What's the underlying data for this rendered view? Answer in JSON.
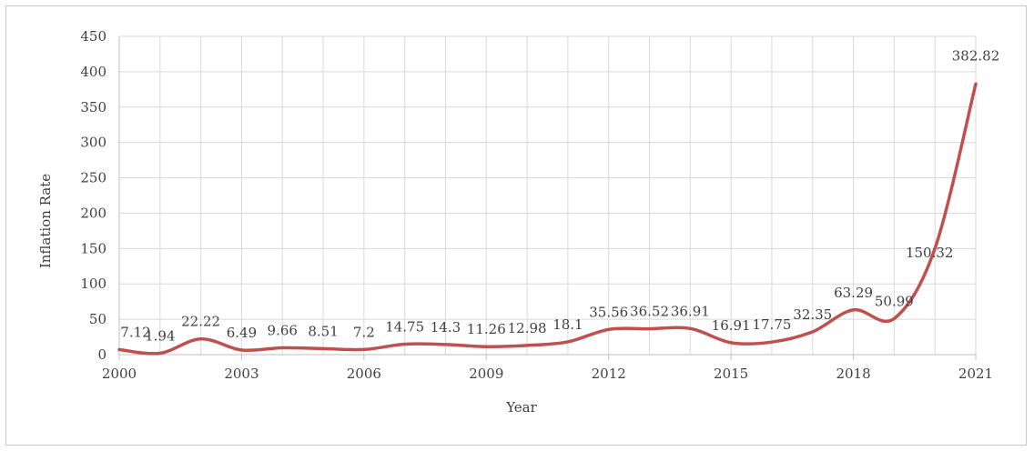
{
  "chart_data": {
    "type": "line",
    "xlabel": "Year",
    "ylabel": "Inflation Rate",
    "ylim": [
      0,
      450
    ],
    "yticks": [
      0,
      50,
      100,
      150,
      200,
      250,
      300,
      350,
      400,
      450
    ],
    "xticks": [
      2000,
      2003,
      2006,
      2009,
      2012,
      2015,
      2018,
      2021
    ],
    "grid": true,
    "line_color": "#c0504d",
    "x": [
      2000,
      2001,
      2002,
      2003,
      2004,
      2005,
      2006,
      2007,
      2008,
      2009,
      2010,
      2011,
      2012,
      2013,
      2014,
      2015,
      2016,
      2017,
      2018,
      2019,
      2020,
      2021
    ],
    "values": [
      7.12,
      1.94,
      22.22,
      6.49,
      9.66,
      8.51,
      7.2,
      14.75,
      14.3,
      11.26,
      12.98,
      18.1,
      35.56,
      36.52,
      36.91,
      16.91,
      17.75,
      32.35,
      63.29,
      50.99,
      150.32,
      382.82
    ],
    "data_labels": [
      "7.12",
      "1.94",
      "22.22",
      "6.49",
      "9.66",
      "8.51",
      "7.2",
      "14.75",
      "14.3",
      "11.26",
      "12.98",
      "18.1",
      "35.56",
      "36.52",
      "36.91",
      "16.91",
      "17.75",
      "32.35",
      "63.29",
      "50.99",
      "150.32",
      "382.82"
    ]
  }
}
